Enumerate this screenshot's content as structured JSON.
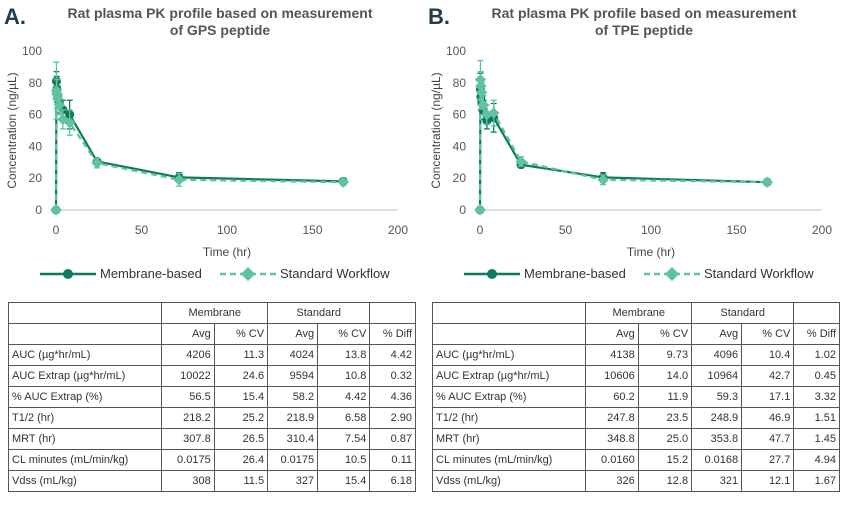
{
  "colors": {
    "membrane": "#0d7a5f",
    "standard": "#5fc2a0",
    "axis": "#bbbbbb",
    "text": "#555555"
  },
  "legend": {
    "membrane": "Membrane-based",
    "standard": "Standard Workflow"
  },
  "table_header": {
    "group1": "Membrane",
    "group2": "Standard",
    "cols": [
      "Avg",
      "% CV",
      "Avg",
      "% CV",
      "% Diff"
    ]
  },
  "panels": [
    {
      "letter": "A.",
      "title_line1": "Rat plasma PK profile based on measurement",
      "title_line2": "of GPS peptide",
      "chart_data": {
        "type": "line",
        "title": "Rat plasma PK profile based on measurement of GPS peptide",
        "xlabel": "Time (hr)",
        "ylabel": "Concentration (ng/µL)",
        "xlim": [
          0,
          200
        ],
        "ylim": [
          0,
          100
        ],
        "xticks": [
          0,
          50,
          100,
          150,
          200
        ],
        "yticks": [
          0,
          20,
          40,
          60,
          80,
          100
        ],
        "series": [
          {
            "name": "Membrane-based",
            "x": [
              0,
              0.25,
              0.5,
              1,
              2,
              4,
              8,
              24,
              72,
              168
            ],
            "y": [
              0,
              81,
              76,
              72,
              67,
              63,
              60,
              30.5,
              20.5,
              18
            ],
            "err": [
              0,
              6,
              8,
              6,
              6,
              6,
              9,
              2,
              3,
              2
            ]
          },
          {
            "name": "Standard Workflow",
            "x": [
              0,
              0.25,
              0.5,
              1,
              2,
              4,
              8,
              24,
              72,
              168
            ],
            "y": [
              0,
              75,
              73,
              70,
              66,
              57,
              55,
              29.5,
              19,
              17.5
            ],
            "err": [
              0,
              18,
              9,
              6,
              6,
              6,
              8,
              3,
              4,
              2
            ]
          }
        ]
      },
      "table_rows": [
        {
          "label": "AUC (µg*hr/mL)",
          "values": [
            "4206",
            "11.3",
            "4024",
            "13.8",
            "4.42"
          ]
        },
        {
          "label": "AUC Extrap (µg*hr/mL)",
          "values": [
            "10022",
            "24.6",
            "9594",
            "10.8",
            "0.32"
          ]
        },
        {
          "label": "% AUC Extrap (%)",
          "values": [
            "56.5",
            "15.4",
            "58.2",
            "4.42",
            "4.36"
          ]
        },
        {
          "label": "T1/2 (hr)",
          "values": [
            "218.2",
            "25.2",
            "218.9",
            "6.58",
            "2.90"
          ]
        },
        {
          "label": "MRT (hr)",
          "values": [
            "307.8",
            "26.5",
            "310.4",
            "7.54",
            "0.87"
          ]
        },
        {
          "label": "CL minutes (mL/min/kg)",
          "values": [
            "0.0175",
            "26.4",
            "0.0175",
            "10.5",
            "0.11"
          ]
        },
        {
          "label": "Vdss (mL/kg)",
          "values": [
            "308",
            "11.5",
            "327",
            "15.4",
            "6.18"
          ]
        }
      ]
    },
    {
      "letter": "B.",
      "title_line1": "Rat plasma PK profile based on measurement",
      "title_line2": "of TPE peptide",
      "chart_data": {
        "type": "line",
        "title": "Rat plasma PK profile based on measurement of TPE peptide",
        "xlabel": "Time (hr)",
        "ylabel": "Concentration (ng/µL)",
        "xlim": [
          0,
          200
        ],
        "ylim": [
          0,
          100
        ],
        "xticks": [
          0,
          50,
          100,
          150,
          200
        ],
        "yticks": [
          0,
          20,
          40,
          60,
          80,
          100
        ],
        "series": [
          {
            "name": "Membrane-based",
            "x": [
              0,
              0.25,
              0.5,
              1,
              2,
              4,
              8,
              24,
              72,
              168
            ],
            "y": [
              0,
              76,
              71,
              68,
              63,
              56,
              58,
              28.5,
              20.5,
              17.5
            ],
            "err": [
              0,
              10,
              8,
              6,
              6,
              5,
              9,
              2,
              3,
              2
            ]
          },
          {
            "name": "Standard Workflow",
            "x": [
              0,
              0.25,
              0.5,
              1,
              2,
              4,
              8,
              24,
              72,
              168
            ],
            "y": [
              0,
              82,
              78,
              74,
              66,
              60,
              61,
              30.5,
              19,
              17.5
            ],
            "err": [
              0,
              12,
              9,
              6,
              6,
              6,
              8,
              3,
              3,
              2
            ]
          }
        ]
      },
      "table_rows": [
        {
          "label": "AUC (µg*hr/mL)",
          "values": [
            "4138",
            "9.73",
            "4096",
            "10.4",
            "1.02"
          ]
        },
        {
          "label": "AUC Extrap (µg*hr/mL)",
          "values": [
            "10606",
            "14.0",
            "10964",
            "42.7",
            "0.45"
          ]
        },
        {
          "label": "% AUC Extrap (%)",
          "values": [
            "60.2",
            "11.9",
            "59.3",
            "17.1",
            "3.32"
          ]
        },
        {
          "label": "T1/2 (hr)",
          "values": [
            "247.8",
            "23.5",
            "248.9",
            "46.9",
            "1.51"
          ]
        },
        {
          "label": "MRT (hr)",
          "values": [
            "348.8",
            "25.0",
            "353.8",
            "47.7",
            "1.45"
          ]
        },
        {
          "label": "CL minutes (mL/min/kg)",
          "values": [
            "0.0160",
            "15.2",
            "0.0168",
            "27.7",
            "4.94"
          ]
        },
        {
          "label": "Vdss (mL/kg)",
          "values": [
            "326",
            "12.8",
            "321",
            "12.1",
            "1.67"
          ]
        }
      ]
    }
  ]
}
